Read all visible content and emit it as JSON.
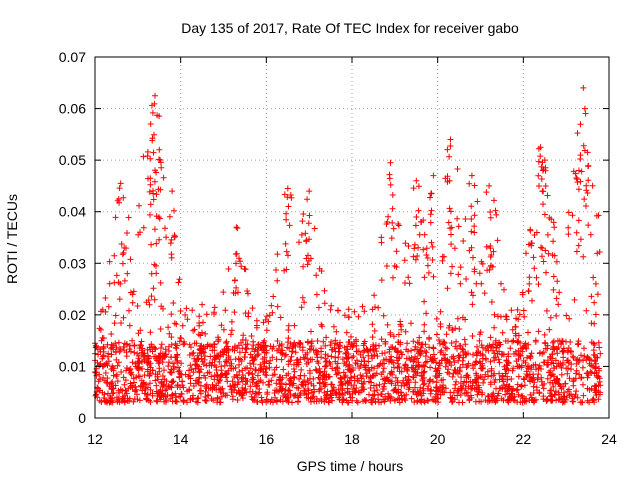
{
  "chart_data": {
    "type": "scatter",
    "title": "Day 135 of 2017, Rate Of TEC Index for receiver gabo",
    "xlabel": "GPS time / hours",
    "ylabel": "ROTI / TECUs",
    "xlim": [
      12,
      24
    ],
    "ylim": [
      0,
      0.07
    ],
    "xticks": [
      12,
      14,
      16,
      18,
      20,
      22,
      24
    ],
    "yticks": [
      0,
      0.01,
      0.02,
      0.03,
      0.04,
      0.05,
      0.06,
      0.07
    ],
    "xtick_labels": [
      "12",
      "14",
      "16",
      "18",
      "20",
      "22",
      "24"
    ],
    "ytick_labels": [
      "0",
      "0.01",
      "0.02",
      "0.03",
      "0.04",
      "0.05",
      "0.06",
      "0.07"
    ],
    "grid": true,
    "marker": "+",
    "marker_color": "#ff0000",
    "x_range_data": [
      12.0,
      23.8
    ],
    "baseline_band": [
      0.003,
      0.015
    ],
    "series": [
      {
        "name": "ROTI",
        "peaks": [
          {
            "x": 12.6,
            "y": 0.0455
          },
          {
            "x": 13.3,
            "y": 0.057
          },
          {
            "x": 13.4,
            "y": 0.0625
          },
          {
            "x": 13.5,
            "y": 0.052
          },
          {
            "x": 13.8,
            "y": 0.044
          },
          {
            "x": 15.3,
            "y": 0.037
          },
          {
            "x": 16.5,
            "y": 0.0445
          },
          {
            "x": 17.0,
            "y": 0.044
          },
          {
            "x": 18.9,
            "y": 0.0495
          },
          {
            "x": 19.5,
            "y": 0.046
          },
          {
            "x": 19.9,
            "y": 0.047
          },
          {
            "x": 20.3,
            "y": 0.054
          },
          {
            "x": 20.8,
            "y": 0.047
          },
          {
            "x": 21.2,
            "y": 0.045
          },
          {
            "x": 22.4,
            "y": 0.0525
          },
          {
            "x": 22.5,
            "y": 0.05
          },
          {
            "x": 23.3,
            "y": 0.048
          },
          {
            "x": 23.4,
            "y": 0.064
          },
          {
            "x": 23.5,
            "y": 0.0515
          }
        ]
      }
    ]
  }
}
